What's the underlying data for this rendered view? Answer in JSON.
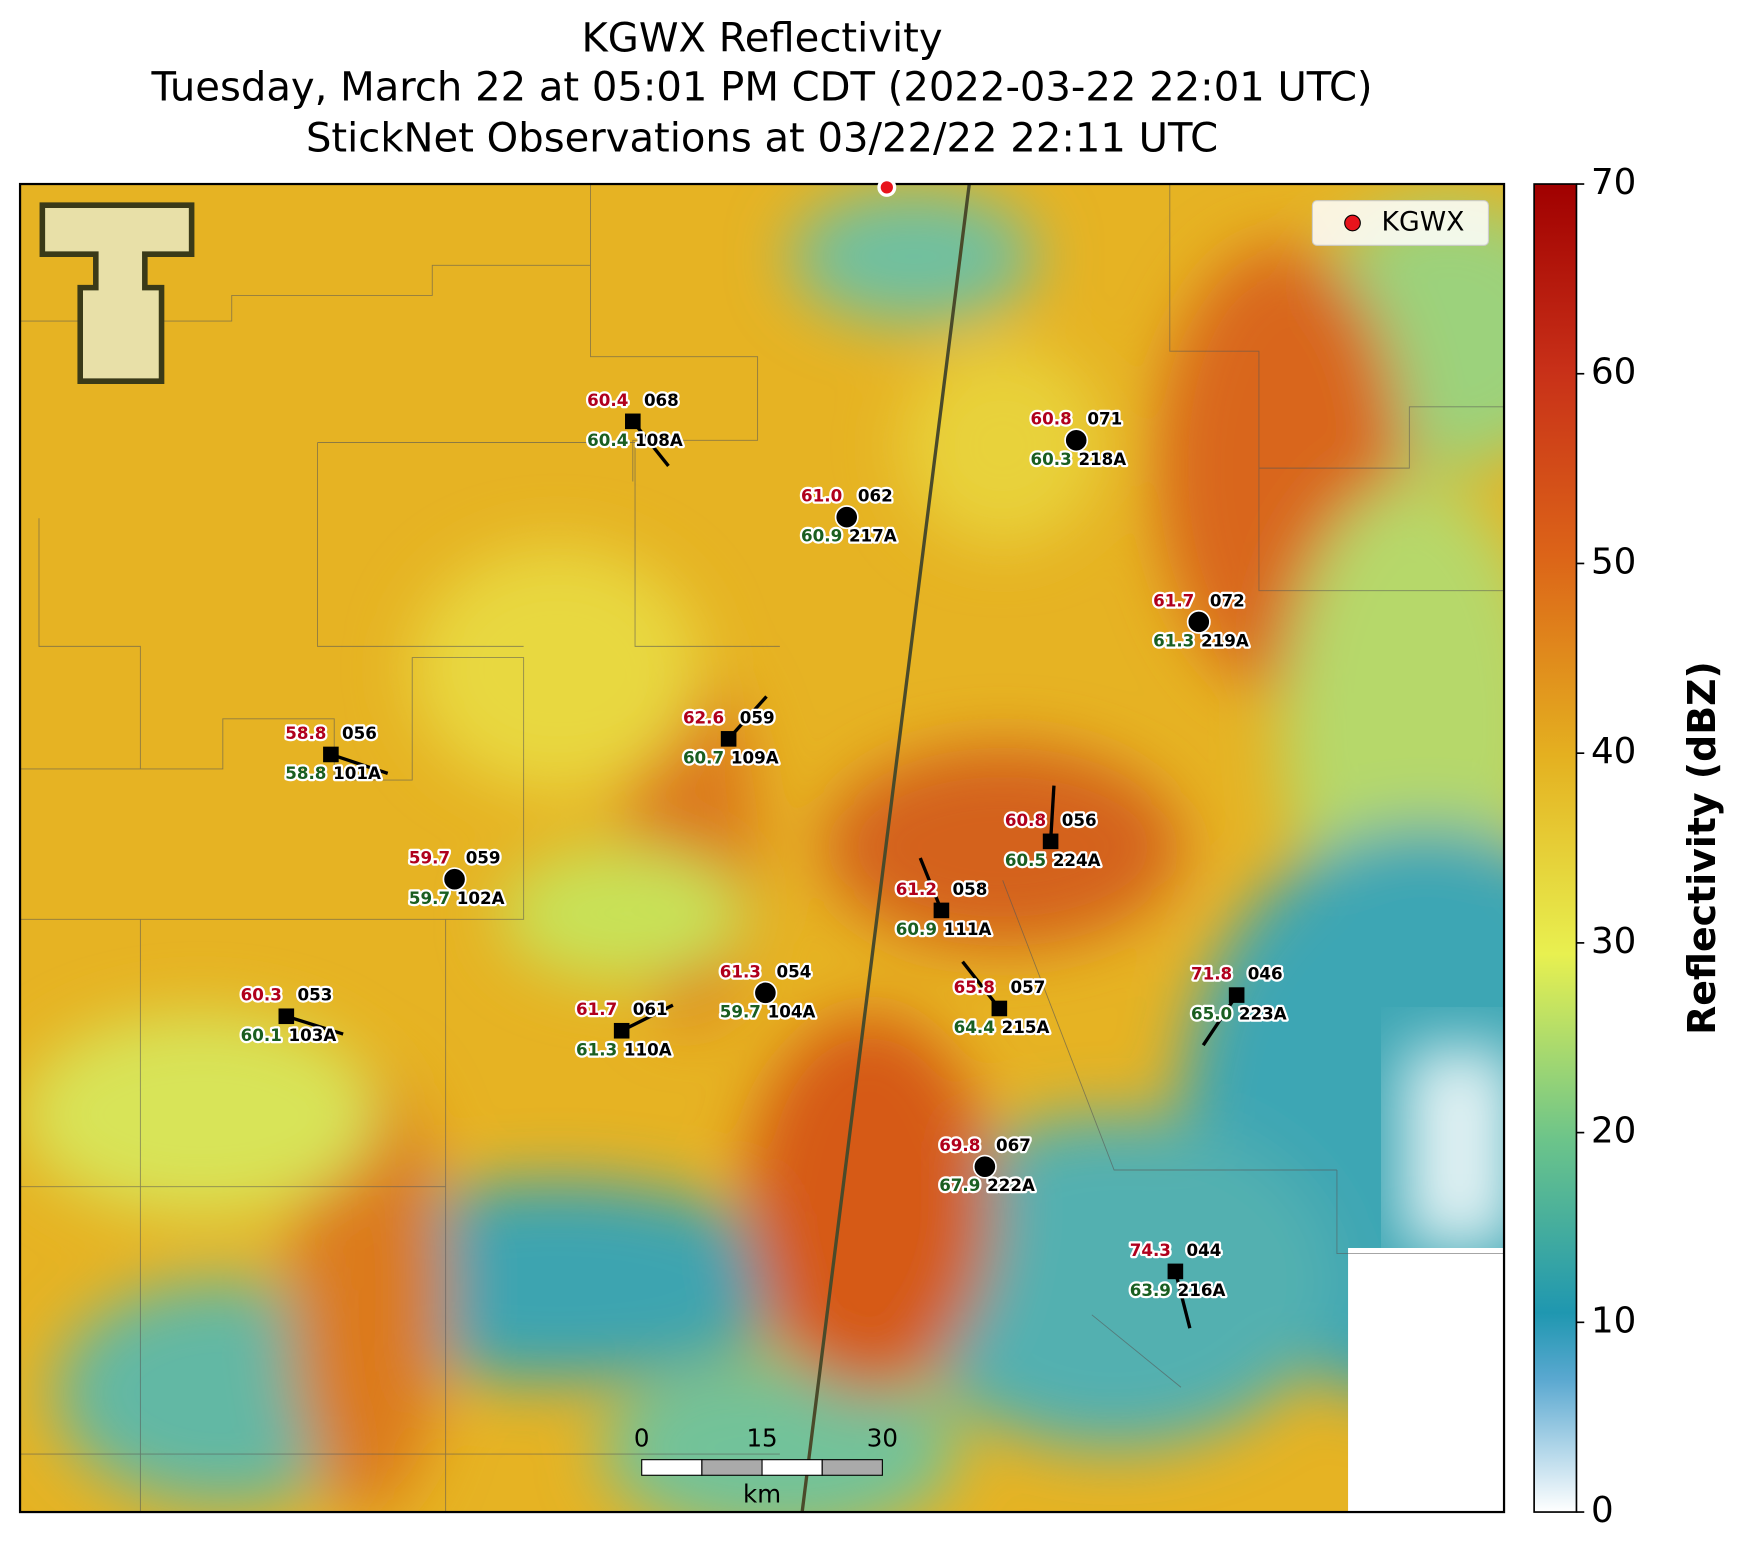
{
  "title": [
    "KGWX Reflectivity",
    "Tuesday, March 22 at 05:01 PM CDT (2022-03-22 22:01 UTC)",
    "StickNet Observations at 03/22/22 22:11 UTC"
  ],
  "legend": {
    "label": "KGWX",
    "color": "#e8141c"
  },
  "colorbar": {
    "label": "Reflectivity (dBZ)",
    "lim": [
      0,
      70
    ],
    "ticks": [
      0,
      10,
      20,
      30,
      40,
      50,
      60,
      70
    ]
  },
  "scale_bar": {
    "ticks": [
      0,
      15,
      30
    ],
    "unit": "km"
  },
  "stations": [
    {
      "id": "108A",
      "temperature": "60.4",
      "dewpoint": "60.4",
      "pressure": "068"
    },
    {
      "id": "217A",
      "temperature": "61.0",
      "dewpoint": "60.9",
      "pressure": "062"
    },
    {
      "id": "218A",
      "temperature": "60.8",
      "dewpoint": "60.3",
      "pressure": "071"
    },
    {
      "id": "219A",
      "temperature": "61.7",
      "dewpoint": "61.3",
      "pressure": "072"
    },
    {
      "id": "109A",
      "temperature": "62.6",
      "dewpoint": "60.7",
      "pressure": "059"
    },
    {
      "id": "101A",
      "temperature": "58.8",
      "dewpoint": "58.8",
      "pressure": "056"
    },
    {
      "id": "102A",
      "temperature": "59.7",
      "dewpoint": "59.7",
      "pressure": "059"
    },
    {
      "id": "224A",
      "temperature": "60.8",
      "dewpoint": "60.5",
      "pressure": "056"
    },
    {
      "id": "111A",
      "temperature": "61.2",
      "dewpoint": "60.9",
      "pressure": "058"
    },
    {
      "id": "103A",
      "temperature": "60.3",
      "dewpoint": "60.1",
      "pressure": "053"
    },
    {
      "id": "110A",
      "temperature": "61.7",
      "dewpoint": "61.3",
      "pressure": "061"
    },
    {
      "id": "104A",
      "temperature": "61.3",
      "dewpoint": "59.7",
      "pressure": "054"
    },
    {
      "id": "215A",
      "temperature": "65.8",
      "dewpoint": "64.4",
      "pressure": "057"
    },
    {
      "id": "223A",
      "temperature": "71.8",
      "dewpoint": "65.0",
      "pressure": "046"
    },
    {
      "id": "222A",
      "temperature": "69.8",
      "dewpoint": "67.9",
      "pressure": "067"
    },
    {
      "id": "216A",
      "temperature": "74.3",
      "dewpoint": "63.9",
      "pressure": "044"
    }
  ]
}
